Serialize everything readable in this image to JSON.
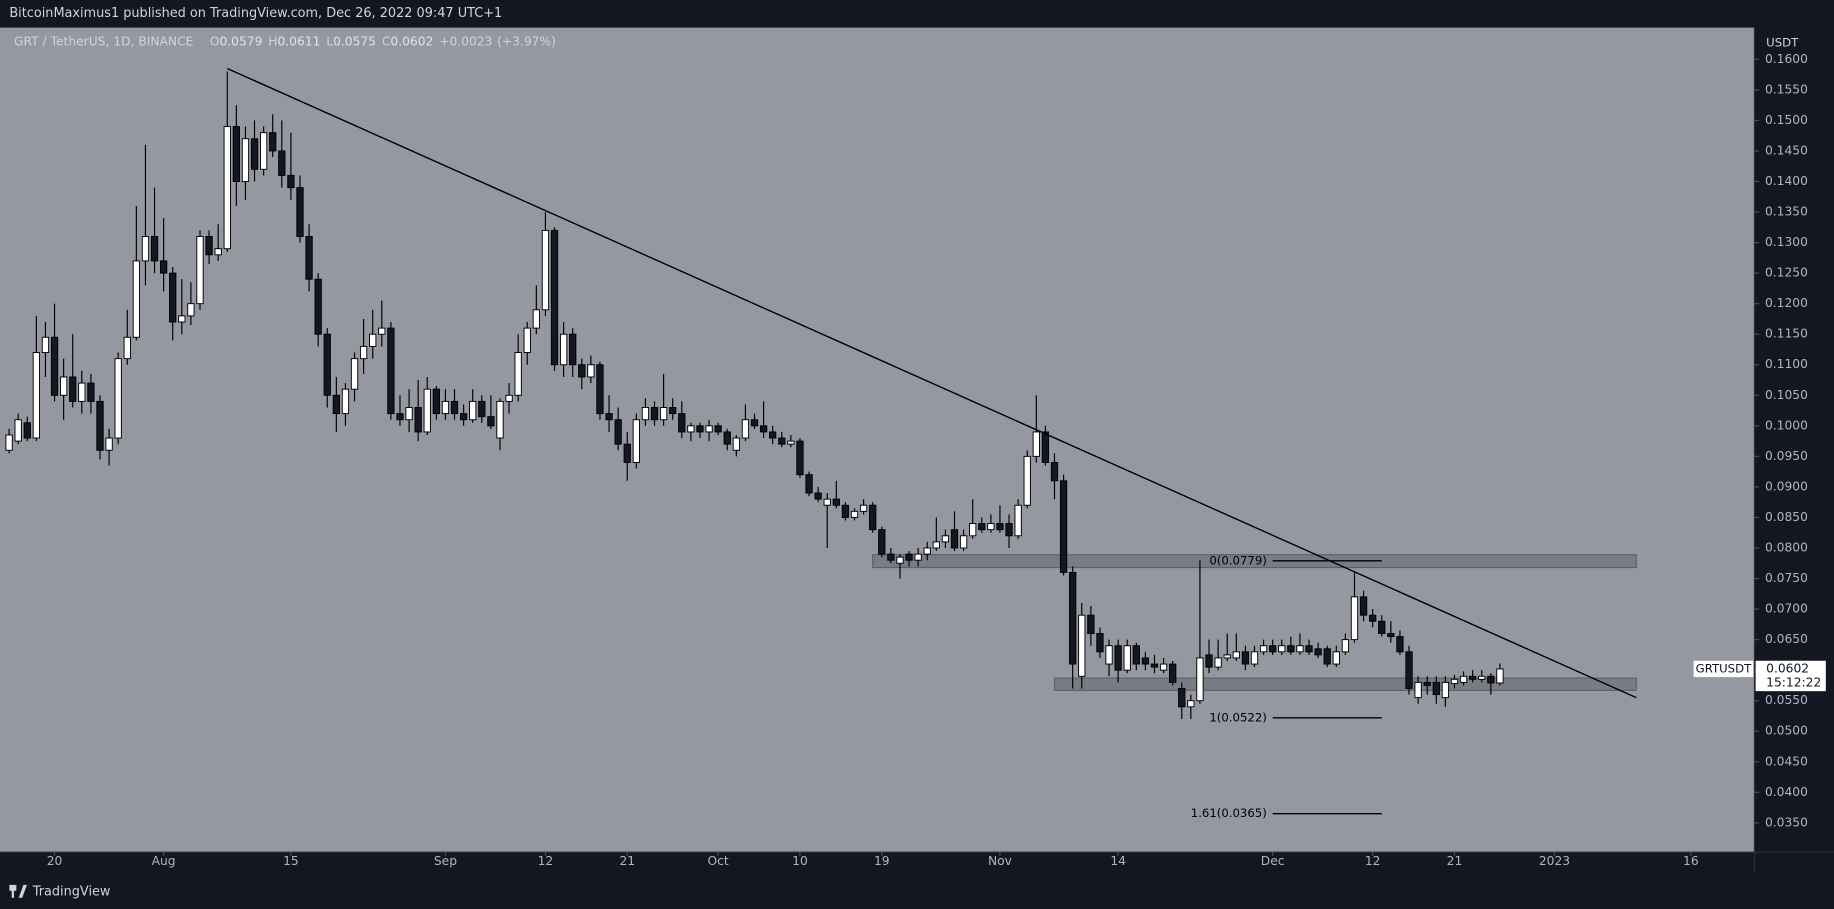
{
  "header": "BitcoinMaximus1 published on TradingView.com, Dec 26, 2022 09:47 UTC+1",
  "footer_brand": "TradingView",
  "chart_data": {
    "type": "candlestick",
    "symbol_title": "GRT / TetherUS, 1D, BINANCE",
    "ohlc": [
      {
        "key": "O",
        "value": 0.0579
      },
      {
        "key": "H",
        "value": 0.0611
      },
      {
        "key": "L",
        "value": 0.0575
      },
      {
        "key": "C",
        "value": 0.0602
      }
    ],
    "change": {
      "value": 0.0023,
      "label": "+0.0023"
    },
    "change_percent": {
      "value": 3.97,
      "label": "(+3.97%)"
    },
    "y_unit": "USDT",
    "x": [
      "2022-07-15",
      "2022-07-16",
      "2022-07-17",
      "2022-07-18",
      "2022-07-19",
      "2022-07-20",
      "2022-07-21",
      "2022-07-22",
      "2022-07-23",
      "2022-07-24",
      "2022-07-25",
      "2022-07-26",
      "2022-07-27",
      "2022-07-28",
      "2022-07-29",
      "2022-07-30",
      "2022-07-31",
      "2022-08-01",
      "2022-08-02",
      "2022-08-03",
      "2022-08-04",
      "2022-08-05",
      "2022-08-06",
      "2022-08-07",
      "2022-08-08",
      "2022-08-09",
      "2022-08-10",
      "2022-08-11",
      "2022-08-12",
      "2022-08-13",
      "2022-08-14",
      "2022-08-15",
      "2022-08-16",
      "2022-08-17",
      "2022-08-18",
      "2022-08-19",
      "2022-08-20",
      "2022-08-21",
      "2022-08-22",
      "2022-08-23",
      "2022-08-24",
      "2022-08-25",
      "2022-08-26",
      "2022-08-27",
      "2022-08-28",
      "2022-08-29",
      "2022-08-30",
      "2022-08-31",
      "2022-09-01",
      "2022-09-02",
      "2022-09-03",
      "2022-09-04",
      "2022-09-05",
      "2022-09-06",
      "2022-09-07",
      "2022-09-08",
      "2022-09-09",
      "2022-09-10",
      "2022-09-11",
      "2022-09-12",
      "2022-09-13",
      "2022-09-14",
      "2022-09-15",
      "2022-09-16",
      "2022-09-17",
      "2022-09-18",
      "2022-09-19",
      "2022-09-20",
      "2022-09-21",
      "2022-09-22",
      "2022-09-23",
      "2022-09-24",
      "2022-09-25",
      "2022-09-26",
      "2022-09-27",
      "2022-09-28",
      "2022-09-29",
      "2022-09-30",
      "2022-10-01",
      "2022-10-02",
      "2022-10-03",
      "2022-10-04",
      "2022-10-05",
      "2022-10-06",
      "2022-10-07",
      "2022-10-08",
      "2022-10-09",
      "2022-10-10",
      "2022-10-11",
      "2022-10-12",
      "2022-10-13",
      "2022-10-14",
      "2022-10-15",
      "2022-10-16",
      "2022-10-17",
      "2022-10-18",
      "2022-10-19",
      "2022-10-20",
      "2022-10-21",
      "2022-10-22",
      "2022-10-23",
      "2022-10-24",
      "2022-10-25",
      "2022-10-26",
      "2022-10-27",
      "2022-10-28",
      "2022-10-29",
      "2022-10-30",
      "2022-10-31",
      "2022-11-01",
      "2022-11-02",
      "2022-11-03",
      "2022-11-04",
      "2022-11-05",
      "2022-11-06",
      "2022-11-07",
      "2022-11-08",
      "2022-11-09",
      "2022-11-10",
      "2022-11-11",
      "2022-11-12",
      "2022-11-13",
      "2022-11-14",
      "2022-11-15",
      "2022-11-16",
      "2022-11-17",
      "2022-11-18",
      "2022-11-19",
      "2022-11-20",
      "2022-11-21",
      "2022-11-22",
      "2022-11-23",
      "2022-11-24",
      "2022-11-25",
      "2022-11-26",
      "2022-11-27",
      "2022-11-28",
      "2022-11-29",
      "2022-11-30",
      "2022-12-01",
      "2022-12-02",
      "2022-12-03",
      "2022-12-04",
      "2022-12-05",
      "2022-12-06",
      "2022-12-07",
      "2022-12-08",
      "2022-12-09",
      "2022-12-10",
      "2022-12-11",
      "2022-12-12",
      "2022-12-13",
      "2022-12-14",
      "2022-12-15",
      "2022-12-16",
      "2022-12-17",
      "2022-12-18",
      "2022-12-19",
      "2022-12-20",
      "2022-12-21",
      "2022-12-22",
      "2022-12-23",
      "2022-12-24",
      "2022-12-25",
      "2022-12-26"
    ],
    "open": [
      0.096,
      0.0975,
      0.1005,
      0.098,
      0.112,
      0.1145,
      0.105,
      0.108,
      0.104,
      0.107,
      0.104,
      0.096,
      0.098,
      0.111,
      0.1145,
      0.127,
      0.131,
      0.127,
      0.125,
      0.117,
      0.118,
      0.12,
      0.131,
      0.128,
      0.129,
      0.149,
      0.14,
      0.147,
      0.142,
      0.148,
      0.145,
      0.141,
      0.139,
      0.131,
      0.124,
      0.115,
      0.105,
      0.102,
      0.106,
      0.111,
      0.113,
      0.115,
      0.116,
      0.102,
      0.101,
      0.103,
      0.099,
      0.106,
      0.102,
      0.104,
      0.102,
      0.101,
      0.104,
      0.1015,
      0.098,
      0.104,
      0.105,
      0.112,
      0.116,
      0.119,
      0.132,
      0.11,
      0.115,
      0.11,
      0.108,
      0.11,
      0.102,
      0.101,
      0.097,
      0.094,
      0.101,
      0.103,
      0.101,
      0.103,
      0.102,
      0.099,
      0.1,
      0.099,
      0.1,
      0.099,
      0.096,
      0.098,
      0.101,
      0.1,
      0.099,
      0.098,
      0.097,
      0.0975,
      0.092,
      0.089,
      0.087,
      0.088,
      0.087,
      0.085,
      0.086,
      0.087,
      0.083,
      0.079,
      0.0775,
      0.079,
      0.078,
      0.079,
      0.08,
      0.081,
      0.083,
      0.08,
      0.082,
      0.084,
      0.083,
      0.084,
      0.084,
      0.082,
      0.087,
      0.095,
      0.099,
      0.094,
      0.091,
      0.076,
      0.059,
      0.069,
      0.066,
      0.061,
      0.064,
      0.06,
      0.064,
      0.062,
      0.061,
      0.06,
      0.061,
      0.057,
      0.054,
      0.055,
      0.0625,
      0.0605,
      0.062,
      0.062,
      0.063,
      0.061,
      0.063,
      0.064,
      0.063,
      0.064,
      0.063,
      0.064,
      0.0635,
      0.0635,
      0.061,
      0.063,
      0.065,
      0.072,
      0.069,
      0.068,
      0.066,
      0.0655,
      0.063,
      0.0555,
      0.058,
      0.058,
      0.0555,
      0.0578,
      0.058,
      0.059,
      0.0585,
      0.059,
      0.0579
    ],
    "high": [
      0.0995,
      0.102,
      0.1015,
      0.118,
      0.117,
      0.12,
      0.111,
      0.115,
      0.109,
      0.1085,
      0.105,
      0.0995,
      0.112,
      0.119,
      0.136,
      0.146,
      0.139,
      0.134,
      0.126,
      0.124,
      0.1235,
      0.132,
      0.132,
      0.133,
      0.158,
      0.1525,
      0.149,
      0.15,
      0.149,
      0.151,
      0.15,
      0.148,
      0.141,
      0.133,
      0.125,
      0.116,
      0.108,
      0.107,
      0.112,
      0.1175,
      0.119,
      0.1205,
      0.117,
      0.105,
      0.106,
      0.1075,
      0.108,
      0.1065,
      0.106,
      0.106,
      0.1035,
      0.106,
      0.105,
      0.105,
      0.1045,
      0.107,
      0.115,
      0.117,
      0.123,
      0.135,
      0.1325,
      0.117,
      0.116,
      0.111,
      0.1115,
      0.1105,
      0.105,
      0.103,
      0.099,
      0.102,
      0.1045,
      0.104,
      0.1085,
      0.1045,
      0.104,
      0.1005,
      0.1005,
      0.101,
      0.1005,
      0.0995,
      0.0985,
      0.1035,
      0.102,
      0.104,
      0.1,
      0.099,
      0.0985,
      0.098,
      0.0925,
      0.09,
      0.089,
      0.091,
      0.0875,
      0.0865,
      0.088,
      0.0875,
      0.0835,
      0.08,
      0.079,
      0.0795,
      0.08,
      0.081,
      0.085,
      0.083,
      0.086,
      0.083,
      0.088,
      0.085,
      0.0855,
      0.087,
      0.0855,
      0.088,
      0.096,
      0.105,
      0.1,
      0.0955,
      0.092,
      0.077,
      0.071,
      0.0705,
      0.067,
      0.065,
      0.065,
      0.065,
      0.0645,
      0.063,
      0.0625,
      0.062,
      0.0615,
      0.058,
      0.056,
      0.078,
      0.065,
      0.065,
      0.066,
      0.066,
      0.064,
      0.064,
      0.065,
      0.065,
      0.065,
      0.0655,
      0.066,
      0.065,
      0.0645,
      0.064,
      0.064,
      0.066,
      0.076,
      0.073,
      0.07,
      0.069,
      0.068,
      0.0665,
      0.064,
      0.059,
      0.059,
      0.059,
      0.059,
      0.0592,
      0.0598,
      0.06,
      0.06,
      0.0595,
      0.0611
    ],
    "low": [
      0.0955,
      0.097,
      0.0975,
      0.0975,
      0.108,
      0.104,
      0.101,
      0.103,
      0.102,
      0.102,
      0.0945,
      0.0935,
      0.097,
      0.11,
      0.114,
      0.123,
      0.125,
      0.122,
      0.114,
      0.115,
      0.1165,
      0.119,
      0.1265,
      0.127,
      0.1285,
      0.136,
      0.137,
      0.14,
      0.141,
      0.144,
      0.139,
      0.137,
      0.13,
      0.122,
      0.113,
      0.103,
      0.099,
      0.1,
      0.104,
      0.1085,
      0.111,
      0.113,
      0.101,
      0.1,
      0.099,
      0.0975,
      0.0985,
      0.101,
      0.101,
      0.101,
      0.1,
      0.1005,
      0.1005,
      0.0995,
      0.096,
      0.102,
      0.104,
      0.11,
      0.115,
      0.118,
      0.109,
      0.108,
      0.108,
      0.106,
      0.107,
      0.101,
      0.099,
      0.096,
      0.091,
      0.093,
      0.1,
      0.1,
      0.1,
      0.101,
      0.098,
      0.0975,
      0.098,
      0.0975,
      0.0985,
      0.096,
      0.095,
      0.0975,
      0.0995,
      0.098,
      0.097,
      0.0965,
      0.0965,
      0.0915,
      0.0885,
      0.0875,
      0.08,
      0.0865,
      0.0845,
      0.0845,
      0.0855,
      0.0825,
      0.0785,
      0.0775,
      0.075,
      0.077,
      0.077,
      0.078,
      0.0795,
      0.08,
      0.0795,
      0.0795,
      0.0815,
      0.0825,
      0.0825,
      0.0825,
      0.08,
      0.0815,
      0.0865,
      0.094,
      0.0935,
      0.088,
      0.0755,
      0.057,
      0.057,
      0.064,
      0.062,
      0.059,
      0.058,
      0.0595,
      0.06,
      0.06,
      0.0595,
      0.0595,
      0.0575,
      0.052,
      0.052,
      0.0545,
      0.0595,
      0.06,
      0.0615,
      0.0615,
      0.06,
      0.0605,
      0.0625,
      0.0625,
      0.0625,
      0.0625,
      0.0625,
      0.0625,
      0.062,
      0.0605,
      0.0605,
      0.0625,
      0.0645,
      0.068,
      0.067,
      0.0655,
      0.0645,
      0.0625,
      0.056,
      0.0545,
      0.056,
      0.0545,
      0.054,
      0.057,
      0.0575,
      0.058,
      0.058,
      0.056,
      0.0575
    ],
    "close": [
      0.0985,
      0.101,
      0.098,
      0.112,
      0.1145,
      0.105,
      0.108,
      0.104,
      0.107,
      0.104,
      0.096,
      0.098,
      0.111,
      0.1145,
      0.127,
      0.131,
      0.127,
      0.125,
      0.117,
      0.118,
      0.12,
      0.131,
      0.128,
      0.129,
      0.149,
      0.14,
      0.147,
      0.142,
      0.148,
      0.145,
      0.141,
      0.139,
      0.131,
      0.124,
      0.115,
      0.105,
      0.102,
      0.106,
      0.111,
      0.113,
      0.115,
      0.116,
      0.102,
      0.101,
      0.103,
      0.099,
      0.106,
      0.102,
      0.104,
      0.102,
      0.101,
      0.104,
      0.1015,
      0.1,
      0.104,
      0.105,
      0.112,
      0.116,
      0.119,
      0.132,
      0.11,
      0.115,
      0.11,
      0.108,
      0.11,
      0.102,
      0.101,
      0.097,
      0.094,
      0.101,
      0.103,
      0.101,
      0.103,
      0.102,
      0.099,
      0.1,
      0.099,
      0.1,
      0.099,
      0.097,
      0.098,
      0.101,
      0.1,
      0.099,
      0.098,
      0.097,
      0.0975,
      0.092,
      0.089,
      0.088,
      0.088,
      0.087,
      0.085,
      0.086,
      0.087,
      0.083,
      0.079,
      0.078,
      0.0785,
      0.078,
      0.079,
      0.08,
      0.081,
      0.082,
      0.08,
      0.082,
      0.084,
      0.083,
      0.084,
      0.083,
      0.082,
      0.087,
      0.095,
      0.099,
      0.094,
      0.091,
      0.076,
      0.061,
      0.069,
      0.066,
      0.063,
      0.064,
      0.06,
      0.064,
      0.061,
      0.061,
      0.0605,
      0.061,
      0.058,
      0.054,
      0.055,
      0.062,
      0.0605,
      0.062,
      0.0625,
      0.063,
      0.061,
      0.063,
      0.064,
      0.063,
      0.064,
      0.063,
      0.064,
      0.063,
      0.0625,
      0.061,
      0.063,
      0.065,
      0.072,
      0.069,
      0.068,
      0.066,
      0.0655,
      0.063,
      0.057,
      0.058,
      0.0575,
      0.056,
      0.058,
      0.0585,
      0.059,
      0.0585,
      0.059,
      0.0579,
      0.0602
    ],
    "up_color": "#ffffff",
    "down_color": "#131722",
    "wick_color": "#000000",
    "background": "#9598a1",
    "xlim": [
      "2022-07-14",
      "2023-01-23"
    ],
    "xticks": [
      {
        "value": "2022-07-20",
        "label": "20"
      },
      {
        "value": "2022-08-01",
        "label": "Aug"
      },
      {
        "value": "2022-08-15",
        "label": "15"
      },
      {
        "value": "2022-09-01",
        "label": "Sep"
      },
      {
        "value": "2022-09-12",
        "label": "12"
      },
      {
        "value": "2022-09-21",
        "label": "21"
      },
      {
        "value": "2022-10-01",
        "label": "Oct"
      },
      {
        "value": "2022-10-10",
        "label": "10"
      },
      {
        "value": "2022-10-19",
        "label": "19"
      },
      {
        "value": "2022-11-01",
        "label": "Nov"
      },
      {
        "value": "2022-11-14",
        "label": "14"
      },
      {
        "value": "2022-12-01",
        "label": "Dec"
      },
      {
        "value": "2022-12-12",
        "label": "12"
      },
      {
        "value": "2022-12-21",
        "label": "21"
      },
      {
        "value": "2023-01-01",
        "label": "2023"
      },
      {
        "value": "2023-01-16",
        "label": "16"
      }
    ],
    "ylim": [
      0.0302,
      0.1652
    ],
    "yticks": [
      {
        "value": 0.035,
        "label": "0.0350"
      },
      {
        "value": 0.04,
        "label": "0.0400"
      },
      {
        "value": 0.045,
        "label": "0.0450"
      },
      {
        "value": 0.05,
        "label": "0.0500"
      },
      {
        "value": 0.055,
        "label": "0.0550"
      },
      {
        "value": 0.06,
        "label": "0.0600"
      },
      {
        "value": 0.065,
        "label": "0.0650"
      },
      {
        "value": 0.07,
        "label": "0.0700"
      },
      {
        "value": 0.075,
        "label": "0.0750"
      },
      {
        "value": 0.08,
        "label": "0.0800"
      },
      {
        "value": 0.085,
        "label": "0.0850"
      },
      {
        "value": 0.09,
        "label": "0.0900"
      },
      {
        "value": 0.095,
        "label": "0.0950"
      },
      {
        "value": 0.1,
        "label": "0.1000"
      },
      {
        "value": 0.105,
        "label": "0.1050"
      },
      {
        "value": 0.11,
        "label": "0.1100"
      },
      {
        "value": 0.115,
        "label": "0.1150"
      },
      {
        "value": 0.12,
        "label": "0.1200"
      },
      {
        "value": 0.125,
        "label": "0.1250"
      },
      {
        "value": 0.13,
        "label": "0.1300"
      },
      {
        "value": 0.135,
        "label": "0.1350"
      },
      {
        "value": 0.14,
        "label": "0.1400"
      },
      {
        "value": 0.145,
        "label": "0.1450"
      },
      {
        "value": 0.15,
        "label": "0.1500"
      },
      {
        "value": 0.155,
        "label": "0.1550"
      },
      {
        "value": 0.16,
        "label": "0.1600"
      }
    ],
    "grid": false,
    "trendline": {
      "x": [
        "2022-08-08",
        "2023-01-10"
      ],
      "values": [
        0.1585,
        0.0555
      ]
    },
    "zones": [
      {
        "x": [
          "2022-10-18",
          "2023-01-10"
        ],
        "range": [
          0.0768,
          0.0789
        ]
      },
      {
        "x": [
          "2022-11-07",
          "2023-01-10"
        ],
        "range": [
          0.0567,
          0.0587
        ]
      }
    ],
    "fib_x": [
      "2022-12-01",
      "2022-12-13"
    ],
    "fib_levels": [
      {
        "value": 0.0779,
        "label": "0(0.0779)"
      },
      {
        "value": 0.0522,
        "label": "1(0.0522)"
      },
      {
        "value": 0.0365,
        "label": "1.61(0.0365)"
      }
    ],
    "price_label": {
      "symbol": "GRTUSDT",
      "value": 0.0602,
      "countdown": "15:12:22"
    }
  }
}
